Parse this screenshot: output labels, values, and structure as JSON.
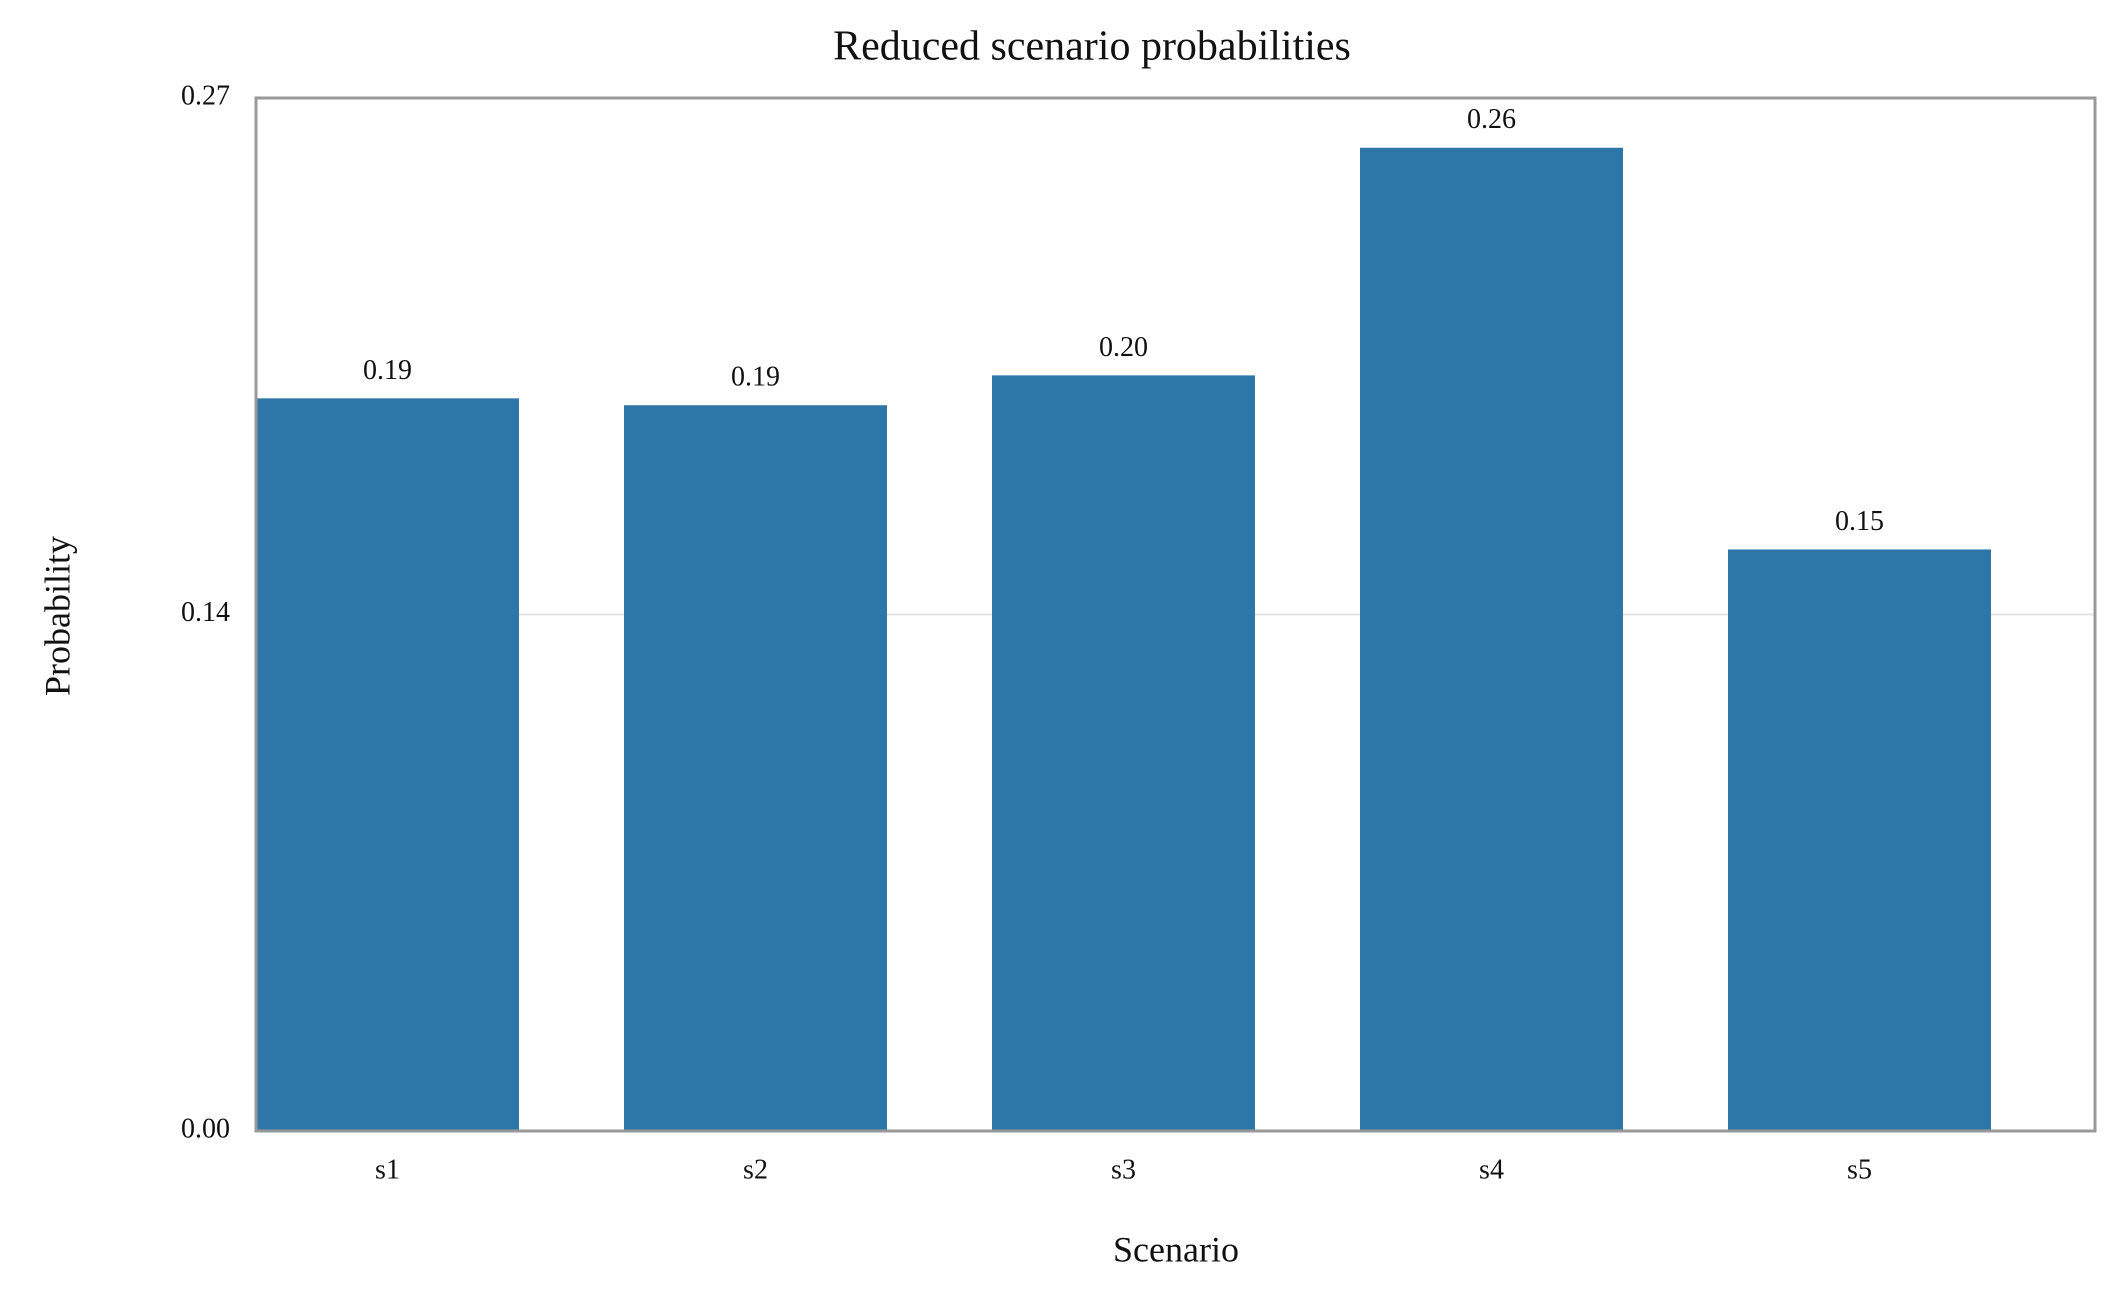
{
  "chart_data": {
    "type": "bar",
    "title": "Reduced scenario probabilities",
    "x_label": "Scenario",
    "y_label": "Probability",
    "categories": [
      "s1",
      "s2",
      "s3",
      "s4",
      "s5"
    ],
    "values": [
      0.1915,
      0.1897,
      0.1975,
      0.257,
      0.152
    ],
    "value_labels": [
      "0.19",
      "0.19",
      "0.20",
      "0.26",
      "0.15"
    ],
    "color": "#2e76a7",
    "ylim": [
      0,
      0.27
    ],
    "yticks": [
      {
        "value": 0,
        "label": "0.00"
      },
      {
        "value": 0.135,
        "label": "0.14"
      },
      0.27
    ],
    "grid": true
  }
}
